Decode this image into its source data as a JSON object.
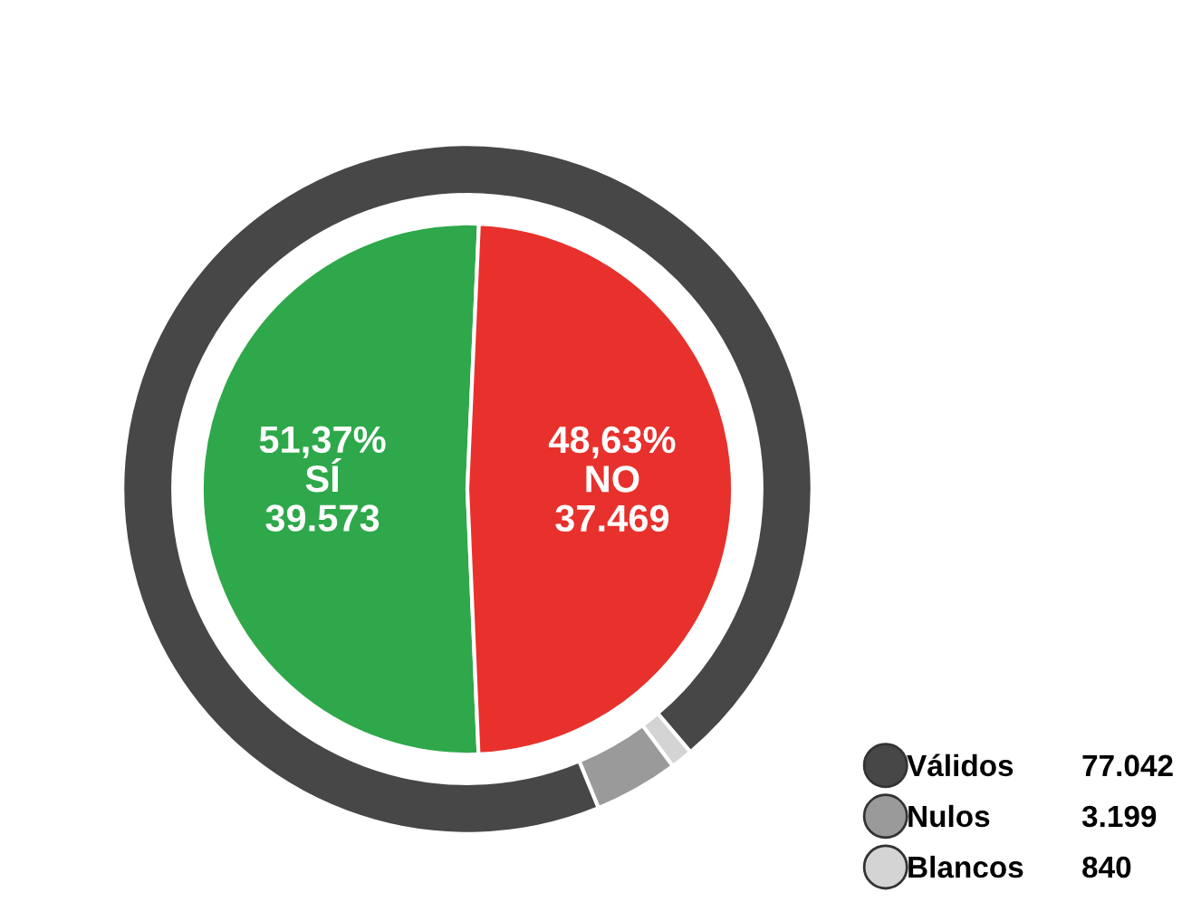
{
  "chart_data": {
    "type": "donut",
    "legend": "bottom right",
    "categories": [
      "SÍ",
      "NO",
      "Válidos",
      "Nulos",
      "Blancos"
    ],
    "colors": [
      "#2ea84a",
      "#e8312c",
      "#474747",
      "#9a9a9a",
      "#d4d4d4"
    ],
    "annotations": [
      "51,37%",
      "48,63%"
    ],
    "series": [
      {
        "type": "pie",
        "values": [
          39573,
          37469,
          null,
          null,
          null
        ],
        "value_labels": [
          "39.573",
          "37.469",
          null,
          null,
          null
        ]
      },
      {
        "values": [
          null,
          null,
          77042,
          3199,
          840
        ],
        "value_labels": [
          null,
          null,
          "77.042",
          "3.199",
          "840"
        ]
      }
    ]
  }
}
